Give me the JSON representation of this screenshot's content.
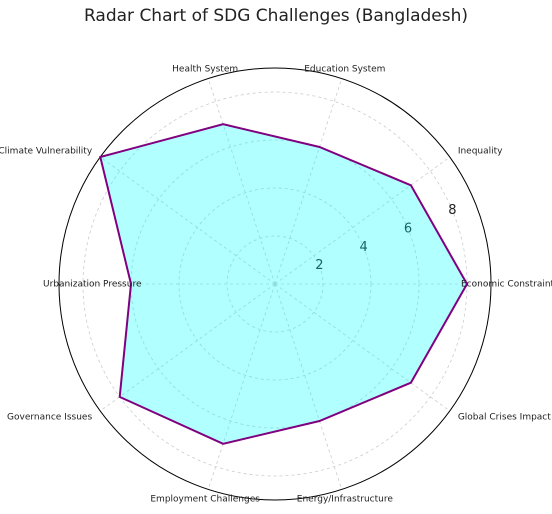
{
  "chart_data": {
    "type": "radar",
    "title": "Radar Chart of SDG Challenges (Bangladesh)",
    "categories": [
      "Economic Constraints",
      "Inequality",
      "Education System",
      "Health System",
      "Climate Vulnerability",
      "Urbanization Pressure",
      "Governance Issues",
      "Employment Challenges",
      "Energy/Infrastructure",
      "Global Crises Impact"
    ],
    "values": [
      8,
      7,
      6,
      7,
      9,
      6,
      8,
      7,
      6,
      7
    ],
    "color": "#800080",
    "fill": "#00ffff",
    "ylim": [
      0,
      9
    ],
    "yticks": [
      2,
      4,
      6,
      8
    ],
    "grid": true
  }
}
